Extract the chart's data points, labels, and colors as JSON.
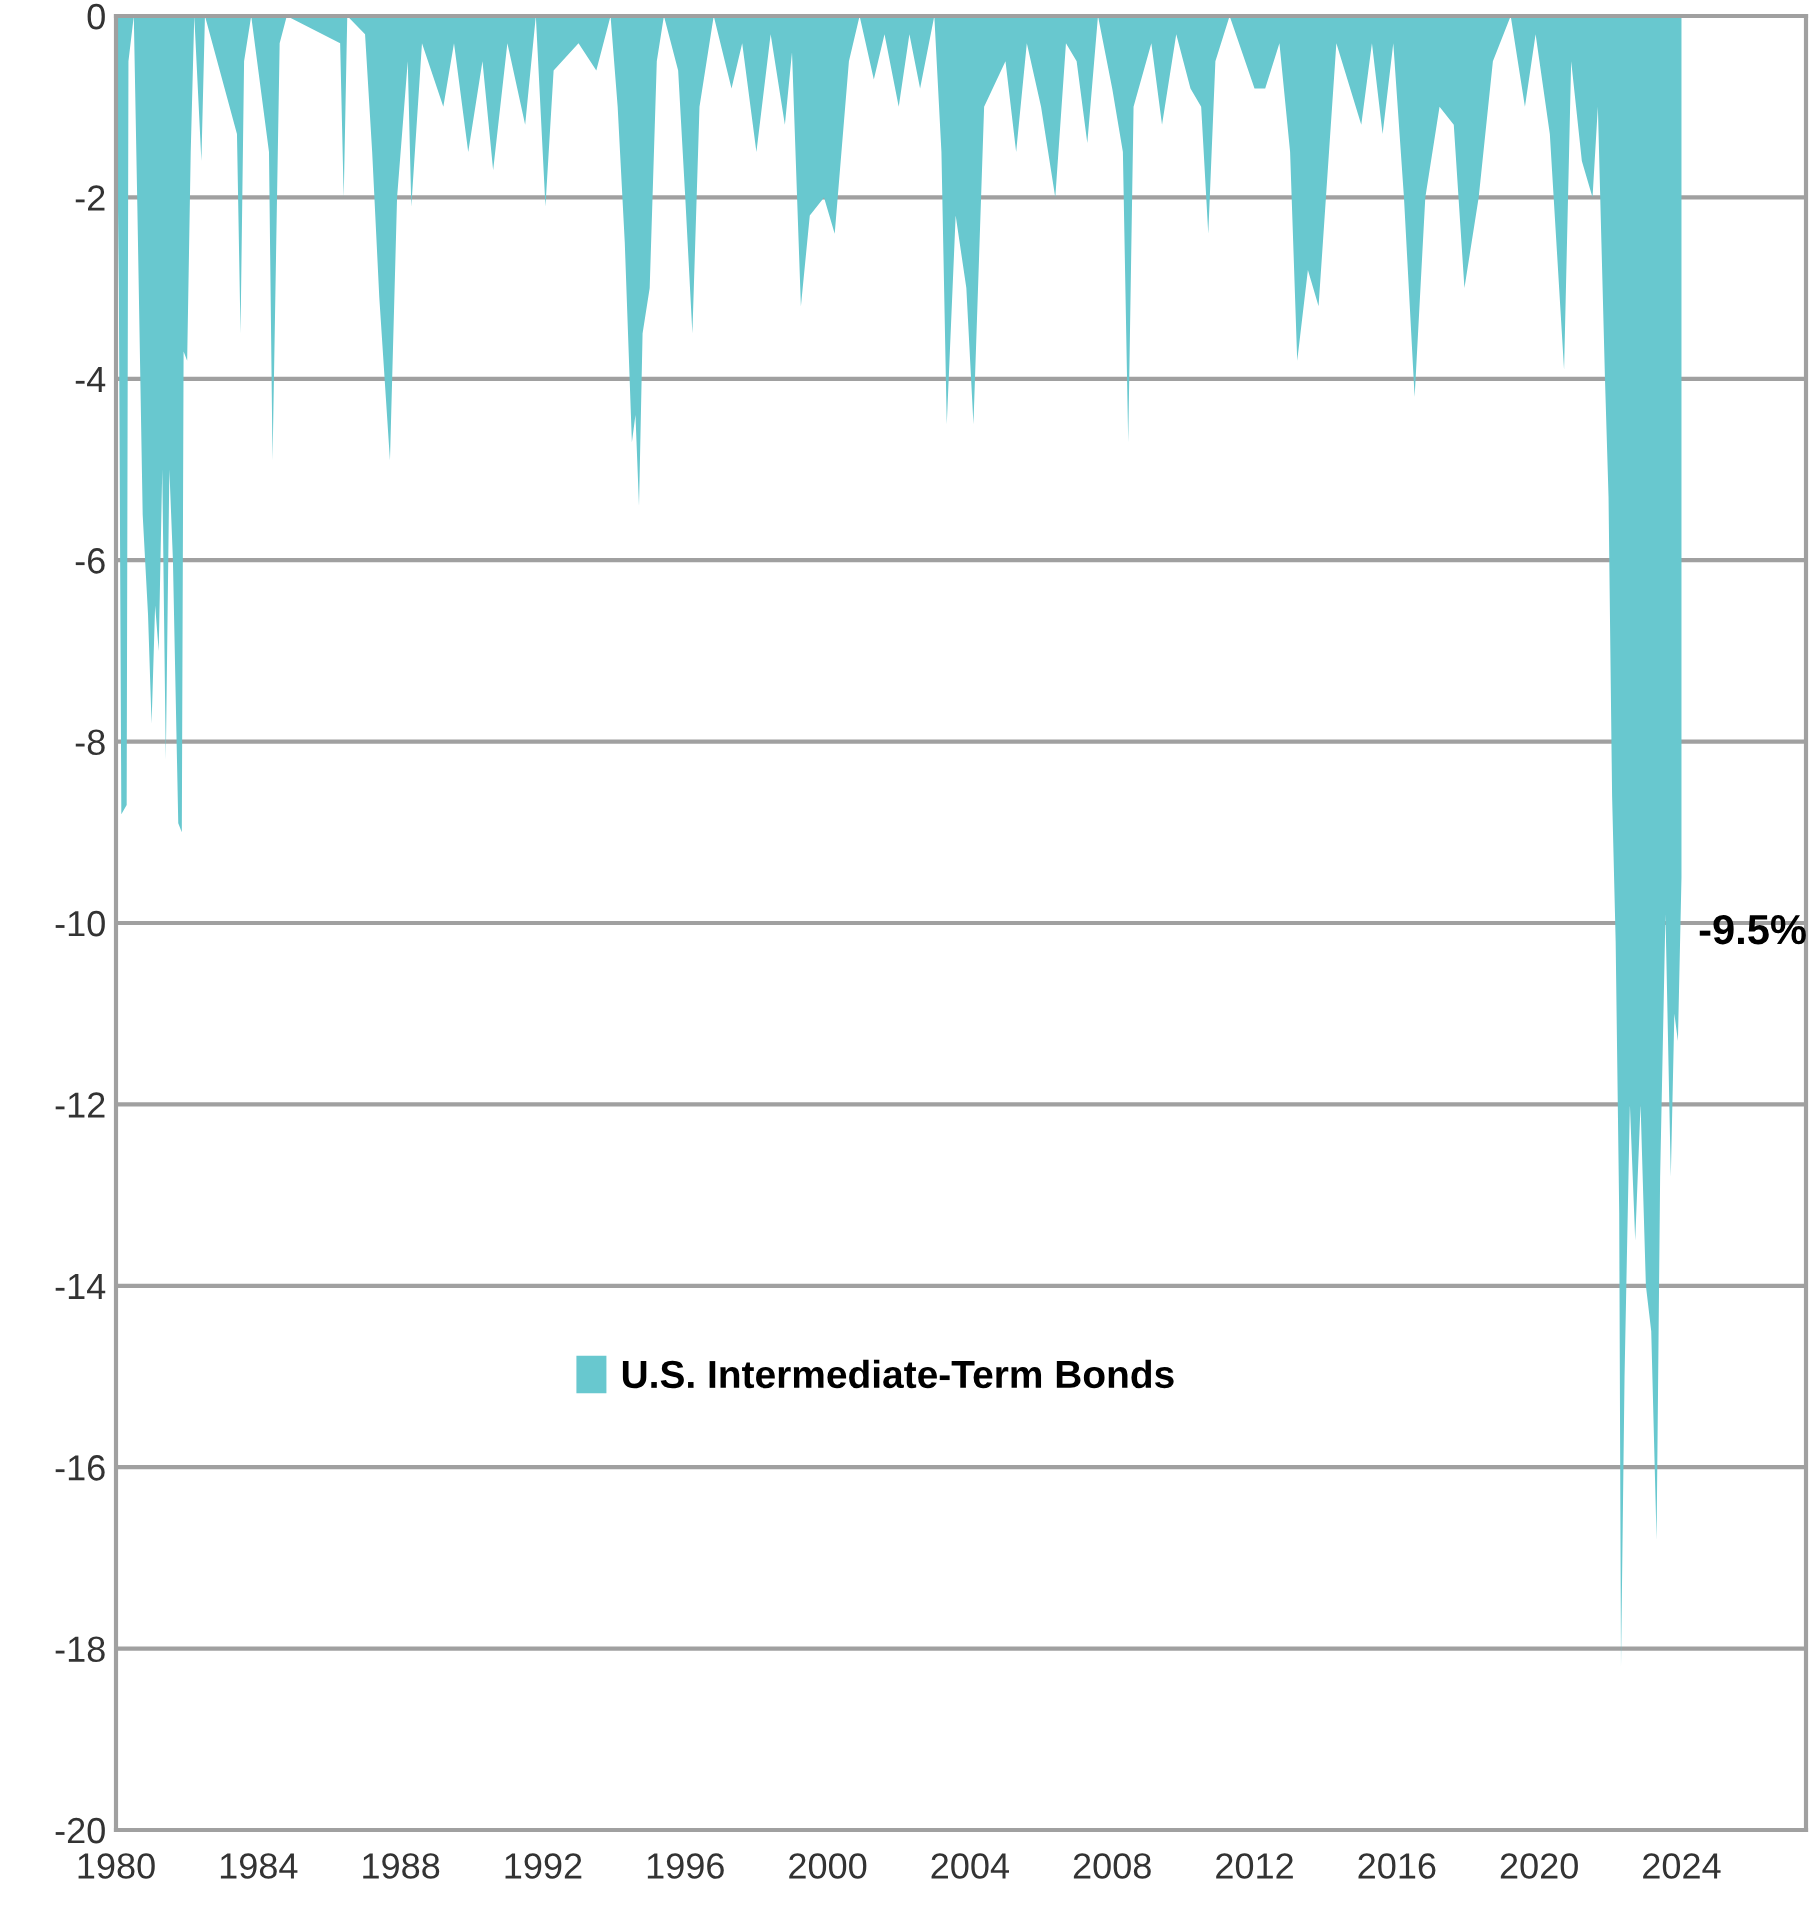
{
  "chart_data": {
    "type": "area",
    "x": [
      1980.0,
      1980.08,
      1980.15,
      1980.3,
      1980.35,
      1980.5,
      1980.6,
      1980.75,
      1980.9,
      1981.0,
      1981.1,
      1981.2,
      1981.3,
      1981.4,
      1981.5,
      1981.6,
      1981.75,
      1981.85,
      1981.9,
      1982.0,
      1982.1,
      1982.2,
      1982.4,
      1982.5,
      1983.4,
      1983.5,
      1983.6,
      1983.8,
      1984.3,
      1984.4,
      1984.6,
      1984.8,
      1986.3,
      1986.4,
      1986.5,
      1987.0,
      1987.2,
      1987.4,
      1987.7,
      1987.9,
      1988.2,
      1988.3,
      1988.6,
      1989.2,
      1989.5,
      1989.9,
      1990.3,
      1990.6,
      1991.0,
      1991.5,
      1991.8,
      1992.07,
      1992.3,
      1993.0,
      1993.5,
      1993.9,
      1994.1,
      1994.3,
      1994.5,
      1994.6,
      1994.7,
      1994.8,
      1995.0,
      1995.2,
      1995.4,
      1995.8,
      1996.0,
      1996.2,
      1996.4,
      1996.8,
      1997.3,
      1997.6,
      1998.0,
      1998.4,
      1998.8,
      1999.0,
      1999.25,
      1999.5,
      1999.9,
      2000.2,
      2000.6,
      2000.9,
      2001.3,
      2001.6,
      2002.0,
      2002.3,
      2002.6,
      2003.0,
      2003.2,
      2003.35,
      2003.6,
      2003.9,
      2004.1,
      2004.4,
      2005.0,
      2005.3,
      2005.6,
      2006.0,
      2006.4,
      2006.7,
      2007.0,
      2007.3,
      2007.6,
      2008.0,
      2008.3,
      2008.45,
      2008.6,
      2009.1,
      2009.4,
      2009.8,
      2010.2,
      2010.5,
      2010.7,
      2010.9,
      2011.3,
      2012.0,
      2012.3,
      2012.7,
      2013.0,
      2013.2,
      2013.5,
      2013.8,
      2014.3,
      2015.0,
      2015.3,
      2015.6,
      2015.9,
      2016.2,
      2016.5,
      2016.8,
      2017.2,
      2017.6,
      2017.9,
      2018.3,
      2018.7,
      2019.2,
      2019.6,
      2019.9,
      2020.3,
      2020.7,
      2020.9,
      2021.2,
      2021.5,
      2021.65,
      2021.75,
      2021.85,
      2021.95,
      2022.05,
      2022.15,
      2022.25,
      2022.3,
      2022.4,
      2022.55,
      2022.7,
      2022.85,
      2023.0,
      2023.15,
      2023.3,
      2023.4,
      2023.55,
      2023.7,
      2023.8,
      2023.9,
      2024.0
    ],
    "series": [
      {
        "name": "U.S. Intermediate-Term Bonds",
        "color": "#68c8cf",
        "values": [
          0,
          -3.0,
          -8.8,
          -8.7,
          -0.5,
          0,
          -2.1,
          -5.5,
          -6.6,
          -7.8,
          -6.5,
          -7.0,
          -5.0,
          -8.2,
          -5.0,
          -6.0,
          -8.9,
          -9.0,
          -3.7,
          -3.8,
          -1.5,
          0,
          -1.6,
          0,
          -1.3,
          -3.5,
          -0.5,
          0,
          -1.5,
          -4.9,
          -0.3,
          0,
          -0.3,
          -2.0,
          0,
          -0.2,
          -1.5,
          -3.1,
          -4.9,
          -2.0,
          -0.5,
          -2.1,
          -0.3,
          -1.0,
          -0.3,
          -1.5,
          -0.5,
          -1.7,
          -0.3,
          -1.2,
          0,
          -2.1,
          -0.6,
          -0.3,
          -0.6,
          0,
          -1.0,
          -2.5,
          -4.7,
          -4.4,
          -5.4,
          -3.5,
          -3.0,
          -0.5,
          0,
          -0.6,
          -2.0,
          -3.5,
          -1.0,
          0,
          -0.8,
          -0.3,
          -1.5,
          -0.2,
          -1.2,
          -0.4,
          -3.2,
          -2.2,
          -2.0,
          -2.4,
          -0.5,
          0,
          -0.7,
          -0.2,
          -1.0,
          -0.2,
          -0.8,
          0,
          -1.5,
          -4.5,
          -2.2,
          -3.0,
          -4.5,
          -1.0,
          -0.5,
          -1.5,
          -0.3,
          -1.0,
          -2.0,
          -0.3,
          -0.5,
          -1.4,
          0,
          -0.8,
          -1.5,
          -4.7,
          -1.0,
          -0.3,
          -1.2,
          -0.2,
          -0.8,
          -1.0,
          -2.4,
          -0.5,
          0,
          -0.8,
          -0.8,
          -0.3,
          -1.5,
          -3.8,
          -2.8,
          -3.2,
          -0.3,
          -1.2,
          -0.3,
          -1.3,
          -0.3,
          -2.0,
          -4.2,
          -2.0,
          -1.0,
          -1.2,
          -3.0,
          -2.0,
          -0.5,
          0,
          -1.0,
          -0.2,
          -1.3,
          -3.9,
          -0.5,
          -1.6,
          -2.0,
          -1.0,
          -2.5,
          -4.0,
          -5.3,
          -8.6,
          -10.2,
          -13.2,
          -18.2,
          -15.0,
          -12.0,
          -13.5,
          -12.0,
          -14.0,
          -14.5,
          -16.8,
          -12.8,
          -9.9,
          -12.8,
          -11.0,
          -11.3,
          -9.5
        ]
      }
    ],
    "xlim": [
      1980,
      2027.5
    ],
    "xticks": [
      1980,
      1984,
      1988,
      1992,
      1996,
      2000,
      2004,
      2008,
      2012,
      2016,
      2020,
      2024
    ],
    "ylim": [
      -20,
      0
    ],
    "yticks": [
      -20,
      -18,
      -16,
      -14,
      -12,
      -10,
      -8,
      -6,
      -4,
      -2,
      0
    ],
    "grid": "y",
    "legend": "bottom",
    "annotations": [
      {
        "text": "-9.5%",
        "x": 2024.0,
        "y": -9.5
      }
    ]
  }
}
